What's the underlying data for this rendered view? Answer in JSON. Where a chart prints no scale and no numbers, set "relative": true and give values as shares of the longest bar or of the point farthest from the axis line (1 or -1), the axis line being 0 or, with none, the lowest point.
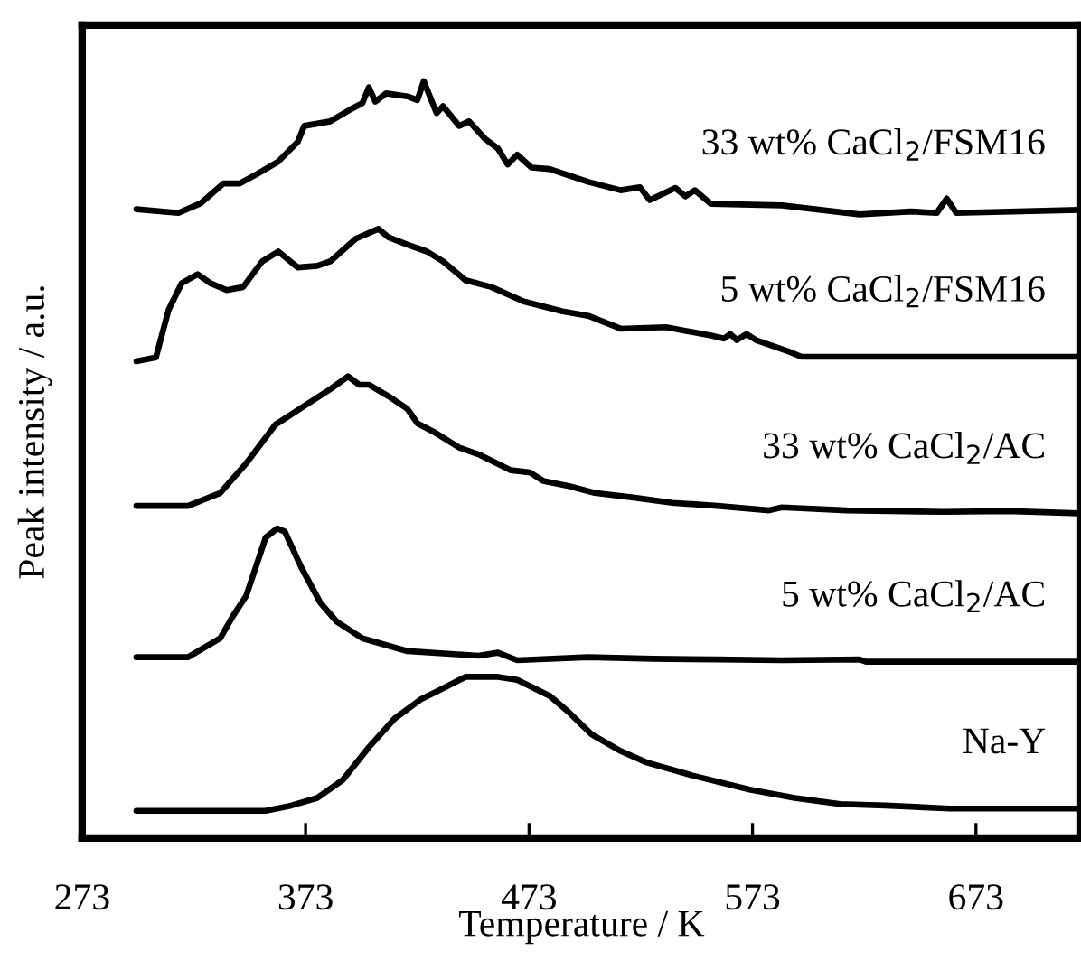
{
  "chart_data": {
    "type": "line",
    "relative": true,
    "xlabel": "Temperature / K",
    "ylabel": "Peak intensity / a.u.",
    "xlim": [
      273,
      720
    ],
    "xticks": [
      273,
      373,
      473,
      573,
      673
    ],
    "grid": false,
    "series": [
      {
        "name": "33 wt% CaCl$_{2}$/FSM16",
        "color": "#000000",
        "x": [
          297.3,
          316.1,
          326.2,
          336.3,
          343.5,
          352.2,
          360.8,
          369.5,
          372.4,
          384.0,
          392.6,
          398.4,
          401.3,
          404.2,
          409.0,
          418.6,
          423.0,
          425.9,
          431.6,
          434.5,
          441.7,
          446.1,
          453.3,
          459.1,
          463.4,
          467.7,
          474.1,
          482.2,
          499.5,
          514.0,
          522.6,
          527.0,
          538.5,
          542.9,
          547.2,
          554.4,
          586.2,
          620.9,
          644.0,
          655.5,
          659.9,
          664.2,
          719.1
        ],
        "values": [
          0.831,
          0.826,
          0.839,
          0.865,
          0.865,
          0.879,
          0.894,
          0.92,
          0.941,
          0.947,
          0.962,
          0.971,
          0.992,
          0.973,
          0.984,
          0.98,
          0.975,
          1.0,
          0.958,
          0.967,
          0.941,
          0.947,
          0.924,
          0.911,
          0.89,
          0.903,
          0.886,
          0.884,
          0.867,
          0.856,
          0.86,
          0.843,
          0.859,
          0.848,
          0.856,
          0.838,
          0.836,
          0.824,
          0.828,
          0.826,
          0.845,
          0.826,
          0.83
        ]
      },
      {
        "name": "5 wt% CaCl$_{2}$/FSM16",
        "color": "#000000",
        "x": [
          297.3,
          306.0,
          311.7,
          317.5,
          324.7,
          330.5,
          337.7,
          345.0,
          353.6,
          360.8,
          369.5,
          378.2,
          384.0,
          395.5,
          405.6,
          410.0,
          418.6,
          427.3,
          434.5,
          444.6,
          456.2,
          470.6,
          488.0,
          499.5,
          514.0,
          534.2,
          554.4,
          560.2,
          563.1,
          566.0,
          570.3,
          574.6,
          589.1,
          594.9,
          719.1
        ],
        "values": [
          0.63,
          0.635,
          0.698,
          0.733,
          0.745,
          0.733,
          0.724,
          0.728,
          0.762,
          0.775,
          0.754,
          0.756,
          0.762,
          0.792,
          0.805,
          0.794,
          0.784,
          0.775,
          0.762,
          0.737,
          0.728,
          0.709,
          0.696,
          0.69,
          0.673,
          0.675,
          0.664,
          0.66,
          0.666,
          0.658,
          0.666,
          0.658,
          0.643,
          0.636,
          0.636
        ]
      },
      {
        "name": "33 wt% CaCl$_{2}$/AC",
        "color": "#000000",
        "x": [
          297.3,
          320.4,
          334.8,
          346.4,
          359.4,
          372.4,
          384.0,
          392.0,
          397.0,
          401.3,
          410.0,
          418.6,
          423.0,
          430.2,
          441.7,
          450.4,
          464.9,
          473.5,
          479.3,
          490.9,
          502.4,
          519.7,
          537.1,
          557.3,
          580.4,
          586.2,
          615.1,
          658.4,
          687.3,
          719.1
        ],
        "values": [
          0.439,
          0.439,
          0.456,
          0.495,
          0.546,
          0.571,
          0.593,
          0.61,
          0.599,
          0.599,
          0.584,
          0.567,
          0.548,
          0.537,
          0.516,
          0.507,
          0.486,
          0.483,
          0.472,
          0.465,
          0.456,
          0.45,
          0.443,
          0.439,
          0.433,
          0.437,
          0.433,
          0.431,
          0.432,
          0.429
        ]
      },
      {
        "name": "5 wt% CaCl$_{2}$/AC",
        "color": "#000000",
        "x": [
          297.3,
          320.4,
          334.8,
          340.6,
          346.4,
          352.2,
          355.1,
          360.3,
          363.7,
          371.0,
          379.6,
          386.9,
          398.4,
          418.6,
          450.4,
          459.1,
          467.7,
          499.5,
          528.4,
          557.3,
          586.2,
          620.9,
          623.8,
          719.1
        ],
        "values": [
          0.239,
          0.239,
          0.264,
          0.294,
          0.32,
          0.371,
          0.397,
          0.409,
          0.405,
          0.358,
          0.311,
          0.286,
          0.264,
          0.247,
          0.241,
          0.245,
          0.235,
          0.239,
          0.237,
          0.236,
          0.235,
          0.236,
          0.233,
          0.233
        ]
      },
      {
        "name": "Na-Y",
        "color": "#000000",
        "x": [
          297.3,
          355.1,
          366.6,
          378.2,
          389.7,
          401.3,
          412.9,
          424.4,
          436.0,
          444.6,
          459.1,
          467.7,
          482.2,
          490.9,
          501.0,
          514.0,
          525.5,
          545.7,
          571.7,
          591.9,
          612.2,
          632.4,
          661.3,
          719.1
        ],
        "values": [
          0.036,
          0.036,
          0.043,
          0.053,
          0.077,
          0.12,
          0.158,
          0.183,
          0.2,
          0.213,
          0.213,
          0.209,
          0.188,
          0.166,
          0.137,
          0.115,
          0.1,
          0.083,
          0.064,
          0.053,
          0.045,
          0.043,
          0.039,
          0.039
        ]
      }
    ]
  }
}
